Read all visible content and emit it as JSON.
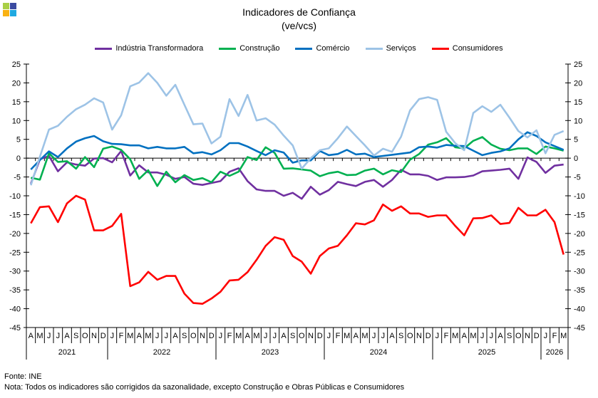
{
  "chart_data": {
    "type": "line",
    "title": "Indicadores de Confiança",
    "subtitle": "(ve/vcs)",
    "xlabel": "",
    "ylabel": "",
    "ylim": [
      -45,
      25
    ],
    "y_ticks": [
      25,
      20,
      15,
      10,
      5,
      0,
      -5,
      -10,
      -15,
      -20,
      -25,
      -30,
      -35,
      -40,
      -45
    ],
    "grid": false,
    "legend_position": "top-center",
    "month_labels": [
      "A",
      "M",
      "J",
      "J",
      "A",
      "S",
      "O",
      "N",
      "D",
      "J",
      "F",
      "M",
      "A",
      "M",
      "J",
      "J",
      "A",
      "S",
      "O",
      "N",
      "D",
      "J",
      "F",
      "M",
      "A",
      "M",
      "J",
      "J",
      "A",
      "S",
      "O",
      "N",
      "D",
      "J",
      "F",
      "M",
      "A",
      "M",
      "J",
      "J",
      "A",
      "S",
      "O",
      "N",
      "D",
      "J",
      "F",
      "M",
      "A",
      "M",
      "J",
      "J",
      "A",
      "S",
      "O",
      "N",
      "D",
      "J",
      "F",
      "M"
    ],
    "years": [
      {
        "label": "2021",
        "months": 9
      },
      {
        "label": "2022",
        "months": 12
      },
      {
        "label": "2023",
        "months": 12
      },
      {
        "label": "2024",
        "months": 12
      },
      {
        "label": "2025",
        "months": 12
      },
      {
        "label": "2026",
        "months": 3
      }
    ],
    "x_start": "2021-04",
    "x_end": "2026-03",
    "series": [
      {
        "name": "Indústria Transformadora",
        "color": "#7030a0",
        "values": [
          -6.8,
          -0.3,
          0.6,
          -3.5,
          -1.1,
          -1.7,
          -2.0,
          -0.1,
          0.0,
          -1.1,
          1.9,
          -4.6,
          -1.9,
          -3.8,
          -3.8,
          -4.4,
          -5.5,
          -5.0,
          -6.8,
          -7.1,
          -6.6,
          -6.1,
          -3.6,
          -2.7,
          -6.1,
          -8.3,
          -8.7,
          -8.7,
          -10.0,
          -9.2,
          -10.8,
          -7.6,
          -9.7,
          -8.5,
          -6.3,
          -6.9,
          -7.4,
          -6.3,
          -5.8,
          -7.6,
          -5.8,
          -3.1,
          -4.3,
          -4.3,
          -4.7,
          -5.8,
          -5.1,
          -5.1,
          -5.0,
          -4.6,
          -3.5,
          -3.3,
          -3.1,
          -2.8,
          -5.5,
          0.2,
          -1.0,
          -3.9,
          -2.0,
          -1.7
        ]
      },
      {
        "name": "Construção",
        "color": "#00b050",
        "values": [
          -5.2,
          -5.7,
          1.3,
          -1.0,
          -0.8,
          -2.8,
          0.3,
          -2.4,
          2.5,
          3.1,
          2.2,
          -0.3,
          -5.5,
          -3.2,
          -7.4,
          -3.6,
          -6.4,
          -4.5,
          -5.8,
          -5.3,
          -6.4,
          -3.6,
          -4.7,
          -3.6,
          0.3,
          -0.5,
          2.9,
          1.4,
          -2.8,
          -2.7,
          -3.0,
          -3.3,
          -4.8,
          -4.0,
          -3.6,
          -4.5,
          -4.4,
          -3.3,
          -2.8,
          -4.3,
          -3.2,
          -3.7,
          -0.4,
          1.1,
          3.6,
          4.2,
          5.3,
          2.9,
          2.6,
          4.6,
          5.6,
          3.6,
          2.5,
          2.1,
          2.6,
          2.6,
          1.1,
          3.1,
          2.6,
          2.0
        ]
      },
      {
        "name": "Comércio",
        "color": "#0070c0",
        "values": [
          -3.0,
          -0.5,
          1.8,
          0.3,
          2.6,
          4.4,
          5.3,
          5.9,
          4.5,
          3.8,
          3.7,
          3.4,
          3.4,
          2.6,
          3.0,
          2.6,
          2.6,
          3.0,
          1.3,
          1.6,
          1.0,
          2.1,
          4.0,
          4.0,
          3.1,
          1.9,
          0.8,
          2.1,
          1.5,
          -1.2,
          -0.6,
          -0.6,
          1.9,
          0.8,
          1.1,
          2.2,
          1.0,
          1.2,
          0.3,
          0.6,
          0.9,
          1.2,
          1.5,
          2.9,
          3.1,
          2.8,
          3.5,
          3.3,
          3.2,
          2.0,
          0.8,
          1.4,
          1.8,
          2.6,
          5.0,
          6.9,
          5.9,
          4.2,
          3.2,
          2.2
        ]
      },
      {
        "name": "Serviços",
        "color": "#9dc3e6",
        "values": [
          -7.2,
          0.4,
          7.6,
          8.6,
          11.0,
          13.0,
          14.2,
          15.9,
          14.8,
          7.6,
          11.4,
          19.1,
          20.1,
          22.6,
          20.0,
          16.6,
          19.5,
          14.2,
          9.0,
          9.2,
          3.9,
          5.7,
          15.7,
          11.2,
          16.8,
          10.0,
          10.6,
          8.9,
          6.0,
          3.4,
          -2.8,
          0.0,
          2.1,
          2.6,
          5.3,
          8.4,
          5.9,
          3.4,
          0.7,
          2.5,
          1.7,
          5.7,
          12.7,
          15.7,
          16.2,
          15.5,
          7.0,
          4.0,
          2.1,
          12.0,
          13.8,
          12.3,
          14.2,
          10.8,
          7.2,
          5.5,
          7.4,
          1.3,
          6.2,
          7.2
        ]
      },
      {
        "name": "Consumidores",
        "color": "#ff0000",
        "values": [
          -17.3,
          -13.0,
          -12.8,
          -17.0,
          -12.0,
          -10.0,
          -11.0,
          -19.2,
          -19.2,
          -18.0,
          -14.8,
          -34.0,
          -33.0,
          -30.2,
          -32.3,
          -31.3,
          -31.3,
          -36.0,
          -38.5,
          -38.7,
          -37.3,
          -35.5,
          -32.5,
          -32.3,
          -30.3,
          -27.0,
          -23.3,
          -21.0,
          -21.7,
          -26.0,
          -27.5,
          -30.7,
          -26.0,
          -24.0,
          -23.3,
          -20.5,
          -17.3,
          -17.6,
          -16.5,
          -12.3,
          -14.0,
          -12.8,
          -14.7,
          -14.7,
          -15.6,
          -15.2,
          -15.2,
          -18.0,
          -20.5,
          -16.0,
          -15.9,
          -15.2,
          -17.5,
          -17.2,
          -13.2,
          -15.2,
          -15.2,
          -13.7,
          -17.0,
          -25.6
        ]
      }
    ]
  },
  "footer": {
    "source": "Fonte: INE",
    "note": "Nota: Todos os indicadores são corrigidos da sazonalidade, excepto Construção e Obras Públicas e Consumidores"
  }
}
